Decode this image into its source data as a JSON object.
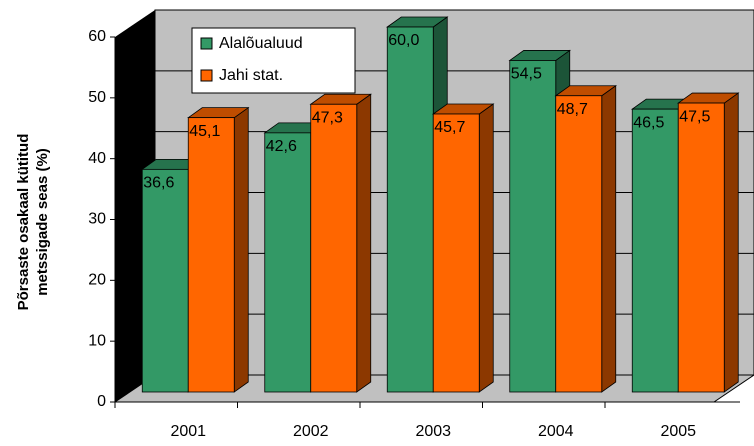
{
  "chart_data": {
    "type": "bar3d",
    "y_label": [
      "Põrsaste osakaal kütitud",
      "metssigade seas (%)"
    ],
    "categories": [
      "2001",
      "2002",
      "2003",
      "2004",
      "2005"
    ],
    "series": [
      {
        "name": "Alalõualuud",
        "color": "#339966",
        "values": [
          36.6,
          42.6,
          60.0,
          54.5,
          46.5
        ],
        "value_labels": [
          "36,6",
          "42,6",
          "60,0",
          "54,5",
          "46,5"
        ]
      },
      {
        "name": "Jahi stat.",
        "color": "#ff6600",
        "values": [
          45.1,
          47.3,
          45.7,
          48.7,
          47.5
        ],
        "value_labels": [
          "45,1",
          "47,3",
          "45,7",
          "48,7",
          "47,5"
        ]
      }
    ],
    "ylim": [
      0,
      60
    ],
    "yticks": [
      0,
      10,
      20,
      30,
      40,
      50,
      60
    ],
    "grid": true
  }
}
